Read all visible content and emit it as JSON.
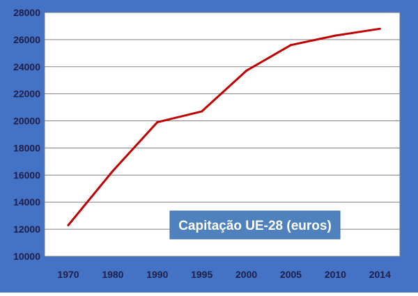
{
  "chart_data": {
    "type": "line",
    "title": "",
    "xlabel": "",
    "ylabel": "",
    "x": [
      "1970",
      "1980",
      "1990",
      "1995",
      "2000",
      "2005",
      "2010",
      "2014"
    ],
    "series": [
      {
        "name": "Capitação UE-28 (euros)",
        "values": [
          12300,
          16300,
          19900,
          20700,
          23700,
          25600,
          26300,
          26800
        ]
      }
    ],
    "ylim": [
      10000,
      28000
    ],
    "yticks": [
      10000,
      12000,
      14000,
      16000,
      18000,
      20000,
      22000,
      24000,
      26000,
      28000
    ],
    "xtick_labels": [
      "1970",
      "1980",
      "1990",
      "1995",
      "2000",
      "2005",
      "2010",
      "2014"
    ],
    "grid": "horizontal",
    "legend_placement": "lower-right"
  },
  "colors": {
    "frame": "#4472c4",
    "plot_background": "#ffffff",
    "line": "#c00000",
    "grid": "#808080",
    "legend_box": "#4f81bd",
    "legend_text": "#ffffff"
  }
}
